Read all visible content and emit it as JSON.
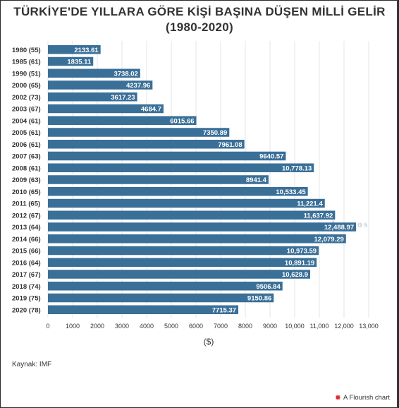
{
  "chart_data": {
    "type": "bar",
    "orientation": "horizontal",
    "title": "TÜRKİYE'DE YILLARA GÖRE KİŞİ BAŞINA DÜŞEN MİLLİ GELİR (1980-2020)",
    "xlabel": "($)",
    "ylabel": "",
    "xlim": [
      0,
      13000
    ],
    "x_ticks": [
      "0",
      "1000",
      "2000",
      "3000",
      "4000",
      "5000",
      "6000",
      "7000",
      "8000",
      "9000",
      "10,000",
      "11,000",
      "12,000",
      "13,000"
    ],
    "x_tick_values": [
      0,
      1000,
      2000,
      3000,
      4000,
      5000,
      6000,
      7000,
      8000,
      9000,
      10000,
      11000,
      12000,
      13000
    ],
    "grid": true,
    "bar_color": "#3a6f98",
    "categories": [
      "1980 (55)",
      "1985 (61)",
      "1990 (51)",
      "2000 (65)",
      "2002 (73)",
      "2003 (67)",
      "2004 (61)",
      "2005 (61)",
      "2006 (61)",
      "2007 (63)",
      "2008 (61)",
      "2009 (63)",
      "2010 (65)",
      "2011 (65)",
      "2012 (67)",
      "2013 (64)",
      "2014 (66)",
      "2015 (66)",
      "2016 (64)",
      "2017 (67)",
      "2018 (74)",
      "2019 (75)",
      "2020 (78)"
    ],
    "values": [
      2133.61,
      1835.11,
      3738.02,
      4237.96,
      3617.23,
      4684.7,
      6015.66,
      7350.89,
      7961.08,
      9640.57,
      10778.13,
      8941.4,
      10533.45,
      11221.4,
      11637.92,
      12488.97,
      12079.29,
      10973.59,
      10891.19,
      10628.9,
      9506.84,
      9150.86,
      7715.37
    ],
    "value_labels": [
      "2133.61",
      "1835.11",
      "3738.02",
      "4237.96",
      "3617.23",
      "4684.7",
      "6015.66",
      "7350.89",
      "7961.08",
      "9640.57",
      "10,778.13",
      "8941.4",
      "10,533.45",
      "11,221.4",
      "11,637.92",
      "12,488.97",
      "12,079.29",
      "10,973.59",
      "10,891.19",
      "10,628.9",
      "9506.84",
      "9150.86",
      "7715.37"
    ]
  },
  "source_text": "Kaynak: IMF",
  "watermark_text": "kronos",
  "flourish_text": "A Flourish chart",
  "flourish_icon": "flourish-logo-icon"
}
